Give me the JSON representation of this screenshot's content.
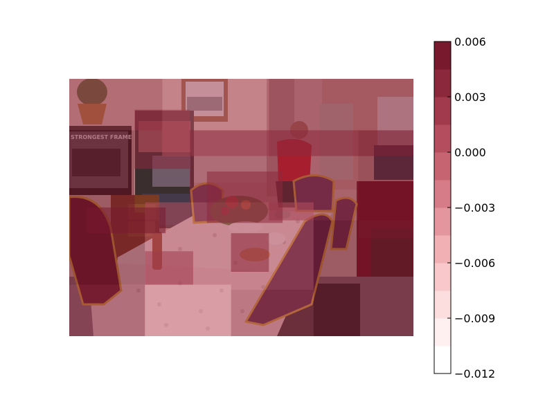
{
  "chart_data": {
    "type": "heatmap",
    "title": "",
    "xlabel": "",
    "ylabel": "",
    "colorbar": {
      "ticks": [
        "0.006",
        "0.003",
        "0.000",
        "−0.003",
        "−0.006",
        "−0.009",
        "−0.012"
      ],
      "range": [
        -0.012,
        0.006
      ],
      "levels": 12,
      "colormap": "Reds (translucent)"
    },
    "background": "photo: dining room with lace-covered table, chairs, flower centerpiece, TV, shelves, woman in red",
    "overlay_patches": [
      {
        "x0": 0.0,
        "y0": 0.0,
        "x1": 0.27,
        "y1": 0.2,
        "value": 0.0018
      },
      {
        "x0": 0.19,
        "y0": 0.12,
        "x1": 0.35,
        "y1": 0.35,
        "value": 0.003
      },
      {
        "x0": 0.27,
        "y0": 0.0,
        "x1": 0.58,
        "y1": 0.3,
        "value": 0.001
      },
      {
        "x0": 0.58,
        "y0": 0.0,
        "x1": 1.0,
        "y1": 0.3,
        "value": 0.004
      },
      {
        "x0": 0.0,
        "y0": 0.2,
        "x1": 0.19,
        "y1": 0.52,
        "value": 0.0045
      },
      {
        "x0": 0.35,
        "y0": 0.2,
        "x1": 0.58,
        "y1": 0.48,
        "value": 0.0035
      },
      {
        "x0": 0.58,
        "y0": 0.2,
        "x1": 0.84,
        "y1": 0.55,
        "value": 0.0042
      },
      {
        "x0": 0.84,
        "y0": 0.2,
        "x1": 1.0,
        "y1": 0.62,
        "value": 0.0058
      },
      {
        "x0": 0.0,
        "y0": 0.52,
        "x1": 0.22,
        "y1": 0.8,
        "value": 0.0052
      },
      {
        "x0": 0.22,
        "y0": 0.48,
        "x1": 0.47,
        "y1": 0.8,
        "value": 0.0005
      },
      {
        "x0": 0.47,
        "y0": 0.48,
        "x1": 0.71,
        "y1": 0.82,
        "value": 0.0012
      },
      {
        "x0": 0.71,
        "y0": 0.55,
        "x1": 1.0,
        "y1": 1.0,
        "value": 0.0048
      },
      {
        "x0": 0.0,
        "y0": 0.8,
        "x1": 0.22,
        "y1": 1.0,
        "value": 0.003
      },
      {
        "x0": 0.22,
        "y0": 0.8,
        "x1": 0.47,
        "y1": 1.0,
        "value": -0.002
      },
      {
        "x0": 0.47,
        "y0": 0.82,
        "x1": 0.71,
        "y1": 1.0,
        "value": 0.0025
      },
      {
        "x0": 0.05,
        "y0": 0.5,
        "x1": 0.28,
        "y1": 0.6,
        "value": 0.005
      },
      {
        "x0": 0.4,
        "y0": 0.36,
        "x1": 0.62,
        "y1": 0.56,
        "value": 0.003
      },
      {
        "x0": 0.22,
        "y0": 0.67,
        "x1": 0.36,
        "y1": 0.8,
        "value": 0.002
      },
      {
        "x0": 0.47,
        "y0": 0.6,
        "x1": 0.58,
        "y1": 0.75,
        "value": 0.004
      }
    ]
  }
}
